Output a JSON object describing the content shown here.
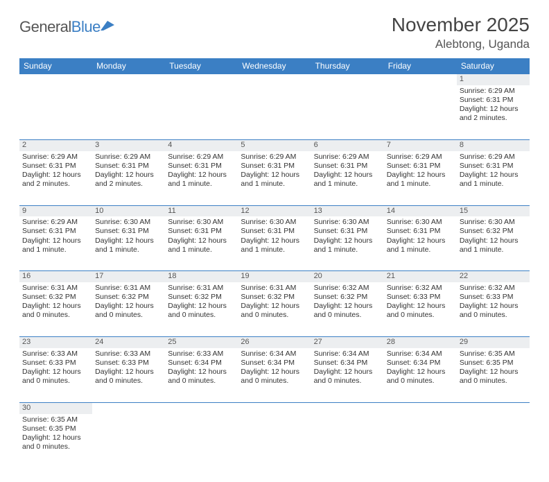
{
  "brand": {
    "name_gray": "General",
    "name_blue": "Blue"
  },
  "title": "November 2025",
  "location": "Alebtong, Uganda",
  "colors": {
    "header_bg": "#3b7fc4",
    "header_text": "#ffffff",
    "daynum_bg": "#eceef0",
    "border": "#3b7fc4",
    "text": "#333333",
    "page_bg": "#ffffff"
  },
  "weekdays": [
    "Sunday",
    "Monday",
    "Tuesday",
    "Wednesday",
    "Thursday",
    "Friday",
    "Saturday"
  ],
  "weeks": [
    [
      null,
      null,
      null,
      null,
      null,
      null,
      {
        "n": "1",
        "sr": "6:29 AM",
        "ss": "6:31 PM",
        "dl": "12 hours and 2 minutes."
      }
    ],
    [
      {
        "n": "2",
        "sr": "6:29 AM",
        "ss": "6:31 PM",
        "dl": "12 hours and 2 minutes."
      },
      {
        "n": "3",
        "sr": "6:29 AM",
        "ss": "6:31 PM",
        "dl": "12 hours and 2 minutes."
      },
      {
        "n": "4",
        "sr": "6:29 AM",
        "ss": "6:31 PM",
        "dl": "12 hours and 1 minute."
      },
      {
        "n": "5",
        "sr": "6:29 AM",
        "ss": "6:31 PM",
        "dl": "12 hours and 1 minute."
      },
      {
        "n": "6",
        "sr": "6:29 AM",
        "ss": "6:31 PM",
        "dl": "12 hours and 1 minute."
      },
      {
        "n": "7",
        "sr": "6:29 AM",
        "ss": "6:31 PM",
        "dl": "12 hours and 1 minute."
      },
      {
        "n": "8",
        "sr": "6:29 AM",
        "ss": "6:31 PM",
        "dl": "12 hours and 1 minute."
      }
    ],
    [
      {
        "n": "9",
        "sr": "6:29 AM",
        "ss": "6:31 PM",
        "dl": "12 hours and 1 minute."
      },
      {
        "n": "10",
        "sr": "6:30 AM",
        "ss": "6:31 PM",
        "dl": "12 hours and 1 minute."
      },
      {
        "n": "11",
        "sr": "6:30 AM",
        "ss": "6:31 PM",
        "dl": "12 hours and 1 minute."
      },
      {
        "n": "12",
        "sr": "6:30 AM",
        "ss": "6:31 PM",
        "dl": "12 hours and 1 minute."
      },
      {
        "n": "13",
        "sr": "6:30 AM",
        "ss": "6:31 PM",
        "dl": "12 hours and 1 minute."
      },
      {
        "n": "14",
        "sr": "6:30 AM",
        "ss": "6:31 PM",
        "dl": "12 hours and 1 minute."
      },
      {
        "n": "15",
        "sr": "6:30 AM",
        "ss": "6:32 PM",
        "dl": "12 hours and 1 minute."
      }
    ],
    [
      {
        "n": "16",
        "sr": "6:31 AM",
        "ss": "6:32 PM",
        "dl": "12 hours and 0 minutes."
      },
      {
        "n": "17",
        "sr": "6:31 AM",
        "ss": "6:32 PM",
        "dl": "12 hours and 0 minutes."
      },
      {
        "n": "18",
        "sr": "6:31 AM",
        "ss": "6:32 PM",
        "dl": "12 hours and 0 minutes."
      },
      {
        "n": "19",
        "sr": "6:31 AM",
        "ss": "6:32 PM",
        "dl": "12 hours and 0 minutes."
      },
      {
        "n": "20",
        "sr": "6:32 AM",
        "ss": "6:32 PM",
        "dl": "12 hours and 0 minutes."
      },
      {
        "n": "21",
        "sr": "6:32 AM",
        "ss": "6:33 PM",
        "dl": "12 hours and 0 minutes."
      },
      {
        "n": "22",
        "sr": "6:32 AM",
        "ss": "6:33 PM",
        "dl": "12 hours and 0 minutes."
      }
    ],
    [
      {
        "n": "23",
        "sr": "6:33 AM",
        "ss": "6:33 PM",
        "dl": "12 hours and 0 minutes."
      },
      {
        "n": "24",
        "sr": "6:33 AM",
        "ss": "6:33 PM",
        "dl": "12 hours and 0 minutes."
      },
      {
        "n": "25",
        "sr": "6:33 AM",
        "ss": "6:34 PM",
        "dl": "12 hours and 0 minutes."
      },
      {
        "n": "26",
        "sr": "6:34 AM",
        "ss": "6:34 PM",
        "dl": "12 hours and 0 minutes."
      },
      {
        "n": "27",
        "sr": "6:34 AM",
        "ss": "6:34 PM",
        "dl": "12 hours and 0 minutes."
      },
      {
        "n": "28",
        "sr": "6:34 AM",
        "ss": "6:34 PM",
        "dl": "12 hours and 0 minutes."
      },
      {
        "n": "29",
        "sr": "6:35 AM",
        "ss": "6:35 PM",
        "dl": "12 hours and 0 minutes."
      }
    ],
    [
      {
        "n": "30",
        "sr": "6:35 AM",
        "ss": "6:35 PM",
        "dl": "12 hours and 0 minutes."
      },
      null,
      null,
      null,
      null,
      null,
      null
    ]
  ],
  "labels": {
    "sunrise": "Sunrise:",
    "sunset": "Sunset:",
    "daylight": "Daylight:"
  }
}
